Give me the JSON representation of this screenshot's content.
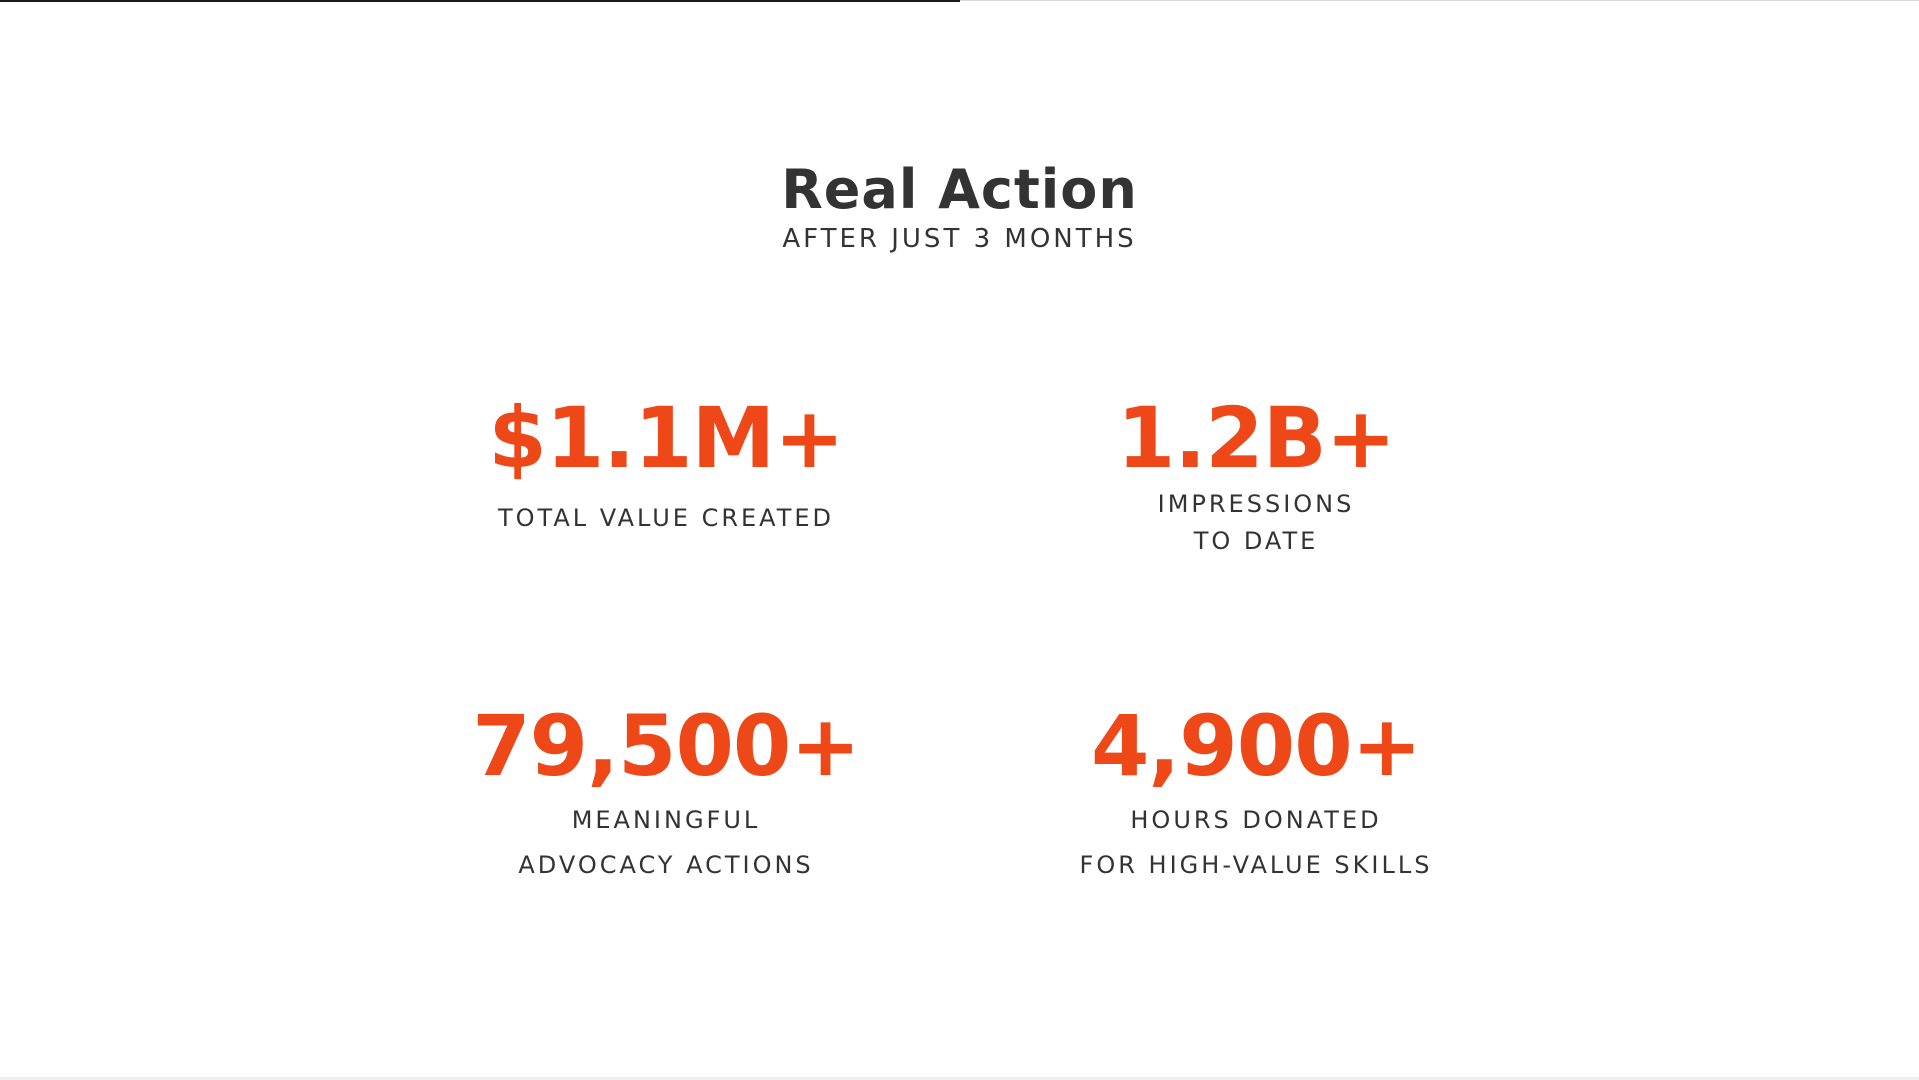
{
  "header": {
    "title": "Real Action",
    "subtitle": "AFTER JUST 3 MONTHS"
  },
  "stats": [
    {
      "value": "$1.1M+",
      "label_lines": [
        "TOTAL VALUE CREATED"
      ]
    },
    {
      "value": "1.2B+",
      "label_lines": [
        "IMPRESSIONS",
        "TO DATE"
      ]
    },
    {
      "value": "79,500+",
      "label_lines": [
        "MEANINGFUL",
        "ADVOCACY ACTIONS"
      ]
    },
    {
      "value": "4,900+",
      "label_lines": [
        "HOURS DONATED",
        "FOR HIGH-VALUE SKILLS"
      ]
    }
  ],
  "colors": {
    "accent": "#ee4718",
    "text": "#333333",
    "background": "#ffffff"
  }
}
